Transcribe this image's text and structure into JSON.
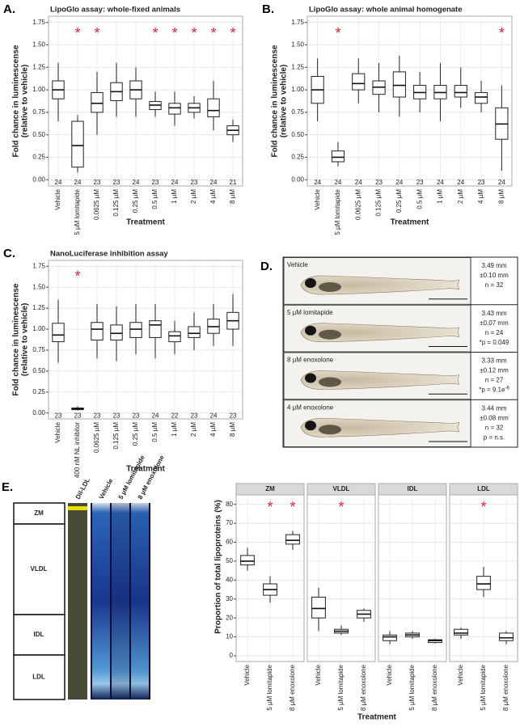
{
  "chart_data": [
    {
      "type": "box",
      "panel_label": "A.",
      "title": "LipoGlo assay: whole-fixed animals",
      "x_label": "Treatment",
      "y_label": [
        "Fold chance in luminescense",
        "(relative to vehicle)"
      ],
      "categories": [
        "Vehicle",
        "5 µM lomitapide",
        "0.0625 µM",
        "0.125 µM",
        "0.25 µM",
        "0.5 µM",
        "1 µM",
        "2 µM",
        "4 µM",
        "8 µM"
      ],
      "boxes": [
        {
          "min": 0.65,
          "q1": 0.9,
          "median": 1.0,
          "q3": 1.1,
          "max": 1.3
        },
        {
          "min": 0.08,
          "q1": 0.14,
          "median": 0.38,
          "q3": 0.65,
          "max": 0.72
        },
        {
          "min": 0.5,
          "q1": 0.75,
          "median": 0.85,
          "q3": 0.97,
          "max": 1.2
        },
        {
          "min": 0.7,
          "q1": 0.88,
          "median": 0.98,
          "q3": 1.08,
          "max": 1.3
        },
        {
          "min": 0.7,
          "q1": 0.9,
          "median": 1.0,
          "q3": 1.1,
          "max": 1.25
        },
        {
          "min": 0.7,
          "q1": 0.78,
          "median": 0.83,
          "q3": 0.87,
          "max": 0.98
        },
        {
          "min": 0.6,
          "q1": 0.73,
          "median": 0.8,
          "q3": 0.85,
          "max": 0.98
        },
        {
          "min": 0.68,
          "q1": 0.75,
          "median": 0.8,
          "q3": 0.85,
          "max": 0.93
        },
        {
          "min": 0.55,
          "q1": 0.7,
          "median": 0.77,
          "q3": 0.9,
          "max": 1.1
        },
        {
          "min": 0.42,
          "q1": 0.5,
          "median": 0.55,
          "q3": 0.6,
          "max": 0.67
        }
      ],
      "n_labels": [
        24,
        24,
        23,
        23,
        24,
        23,
        24,
        23,
        24,
        21
      ],
      "significance": [
        null,
        "*",
        "*",
        null,
        null,
        "*",
        "*",
        "*",
        "*",
        "*"
      ],
      "ylim": [
        -0.07,
        1.82
      ],
      "yticks": [
        {
          "value": 0,
          "label": "0.00"
        },
        {
          "value": 0.25,
          "label": "0.25"
        },
        {
          "value": 0.5,
          "label": "0.50"
        },
        {
          "value": 0.75,
          "label": "0.75"
        },
        {
          "value": 1,
          "label": "1.00"
        },
        {
          "value": 1.25,
          "label": "1.25"
        },
        {
          "value": 1.5,
          "label": "1.50"
        },
        {
          "value": 1.75,
          "label": "1.75"
        }
      ],
      "grid": true
    },
    {
      "type": "box",
      "panel_label": "B.",
      "title": "LipoGlo assay: whole animal homogenate",
      "x_label": "Treatment",
      "y_label": [
        "Fold chance in luminescense",
        "(relative to vehicle)"
      ],
      "categories": [
        "Vehicle",
        "5 µM lomitapide",
        "0.0625 µM",
        "0.125 µM",
        "0.25 µM",
        "0.5 µM",
        "1 µM",
        "2 µM",
        "4 µM",
        "8 µM"
      ],
      "boxes": [
        {
          "min": 0.65,
          "q1": 0.85,
          "median": 1.0,
          "q3": 1.15,
          "max": 1.35
        },
        {
          "min": 0.15,
          "q1": 0.2,
          "median": 0.25,
          "q3": 0.32,
          "max": 0.42
        },
        {
          "min": 0.85,
          "q1": 1.0,
          "median": 1.07,
          "q3": 1.18,
          "max": 1.35
        },
        {
          "min": 0.75,
          "q1": 0.95,
          "median": 1.03,
          "q3": 1.1,
          "max": 1.3
        },
        {
          "min": 0.7,
          "q1": 0.92,
          "median": 1.05,
          "q3": 1.2,
          "max": 1.38
        },
        {
          "min": 0.75,
          "q1": 0.9,
          "median": 0.97,
          "q3": 1.05,
          "max": 1.2
        },
        {
          "min": 0.65,
          "q1": 0.9,
          "median": 0.97,
          "q3": 1.05,
          "max": 1.3
        },
        {
          "min": 0.8,
          "q1": 0.92,
          "median": 0.97,
          "q3": 1.05,
          "max": 1.25
        },
        {
          "min": 0.75,
          "q1": 0.85,
          "median": 0.92,
          "q3": 0.97,
          "max": 1.1
        },
        {
          "min": 0.1,
          "q1": 0.45,
          "median": 0.62,
          "q3": 0.8,
          "max": 1.05
        }
      ],
      "n_labels": [
        24,
        24,
        24,
        23,
        24,
        23,
        24,
        24,
        23,
        24
      ],
      "significance": [
        null,
        "*",
        null,
        null,
        null,
        null,
        null,
        null,
        null,
        "*"
      ],
      "ylim": [
        -0.07,
        1.82
      ],
      "yticks": [
        {
          "value": 0,
          "label": "0.00"
        },
        {
          "value": 0.25,
          "label": "0.25"
        },
        {
          "value": 0.5,
          "label": "0.50"
        },
        {
          "value": 0.75,
          "label": "0.75"
        },
        {
          "value": 1,
          "label": "1.00"
        },
        {
          "value": 1.25,
          "label": "1.25"
        },
        {
          "value": 1.5,
          "label": "1.50"
        },
        {
          "value": 1.75,
          "label": "1.75"
        }
      ],
      "grid": true
    },
    {
      "type": "box",
      "panel_label": "C.",
      "title": "NanoLuciferase inhibition assay",
      "x_label": "Treatment",
      "y_label": [
        "Fold chance in luminescense",
        "(relative to vehicle)"
      ],
      "categories": [
        "Vehicle",
        "400 nM NL inhibitor",
        "0.0625 µM",
        "0.125 µM",
        "0.25 µM",
        "0.5 µM",
        "1 µM",
        "2 µM",
        "4 µM",
        "8 µM"
      ],
      "boxes": [
        {
          "min": 0.6,
          "q1": 0.85,
          "median": 0.93,
          "q3": 1.07,
          "max": 1.35
        },
        {
          "min": 0.03,
          "q1": 0.04,
          "median": 0.05,
          "q3": 0.06,
          "max": 0.08
        },
        {
          "min": 0.65,
          "q1": 0.87,
          "median": 1.0,
          "q3": 1.08,
          "max": 1.3
        },
        {
          "min": 0.62,
          "q1": 0.87,
          "median": 0.95,
          "q3": 1.05,
          "max": 1.27
        },
        {
          "min": 0.7,
          "q1": 0.9,
          "median": 1.0,
          "q3": 1.08,
          "max": 1.3
        },
        {
          "min": 0.65,
          "q1": 0.9,
          "median": 1.05,
          "q3": 1.1,
          "max": 1.3
        },
        {
          "min": 0.7,
          "q1": 0.85,
          "median": 0.92,
          "q3": 0.97,
          "max": 1.1
        },
        {
          "min": 0.75,
          "q1": 0.9,
          "median": 0.95,
          "q3": 1.03,
          "max": 1.2
        },
        {
          "min": 0.8,
          "q1": 0.95,
          "median": 1.03,
          "q3": 1.12,
          "max": 1.3
        },
        {
          "min": 0.8,
          "q1": 1.0,
          "median": 1.1,
          "q3": 1.2,
          "max": 1.42
        }
      ],
      "n_labels": [
        23,
        23,
        23,
        23,
        23,
        24,
        22,
        23,
        24,
        23
      ],
      "significance": [
        null,
        "*",
        null,
        null,
        null,
        null,
        null,
        null,
        null,
        null
      ],
      "ylim": [
        -0.07,
        1.82
      ],
      "yticks": [
        {
          "value": 0,
          "label": "0.00"
        },
        {
          "value": 0.25,
          "label": "0.25"
        },
        {
          "value": 0.5,
          "label": "0.50"
        },
        {
          "value": 0.75,
          "label": "0.75"
        },
        {
          "value": 1,
          "label": "1.00"
        },
        {
          "value": 1.25,
          "label": "1.25"
        },
        {
          "value": 1.5,
          "label": "1.50"
        },
        {
          "value": 1.75,
          "label": "1.75"
        }
      ],
      "grid": true
    },
    {
      "type": "facet_box",
      "panel_label": "E.",
      "x_label": "Treatment",
      "y_label": "Proportion of total lipoproteins (%)",
      "categories": [
        "Vehicle",
        "5 µM lomitapide",
        "8 µM enoxolone"
      ],
      "facets": [
        {
          "name": "ZM",
          "significance": [
            null,
            "*",
            "*"
          ],
          "boxes": [
            {
              "min": 45,
              "q1": 48,
              "median": 50,
              "q3": 53,
              "max": 57
            },
            {
              "min": 28,
              "q1": 32,
              "median": 35,
              "q3": 38,
              "max": 42
            },
            {
              "min": 56,
              "q1": 59,
              "median": 61,
              "q3": 64,
              "max": 66
            }
          ]
        },
        {
          "name": "VLDL",
          "significance": [
            null,
            "*",
            null
          ],
          "boxes": [
            {
              "min": 13,
              "q1": 20,
              "median": 25,
              "q3": 31,
              "max": 36
            },
            {
              "min": 11,
              "q1": 12,
              "median": 13,
              "q3": 14,
              "max": 16
            },
            {
              "min": 18,
              "q1": 20,
              "median": 22,
              "q3": 24,
              "max": 25
            }
          ]
        },
        {
          "name": "IDL",
          "significance": [
            null,
            null,
            null
          ],
          "boxes": [
            {
              "min": 6,
              "q1": 8,
              "median": 10,
              "q3": 11,
              "max": 13
            },
            {
              "min": 9,
              "q1": 10,
              "median": 11,
              "q3": 12,
              "max": 13
            },
            {
              "min": 6.5,
              "q1": 7,
              "median": 8,
              "q3": 8.5,
              "max": 9
            }
          ]
        },
        {
          "name": "LDL",
          "significance": [
            null,
            "*",
            null
          ],
          "boxes": [
            {
              "min": 9,
              "q1": 11,
              "median": 12,
              "q3": 14,
              "max": 15
            },
            {
              "min": 31,
              "q1": 35,
              "median": 38,
              "q3": 42,
              "max": 47
            },
            {
              "min": 6,
              "q1": 8,
              "median": 9.5,
              "q3": 12,
              "max": 13
            }
          ]
        }
      ],
      "ylim": [
        -3,
        85
      ],
      "yticks": [
        0,
        10,
        20,
        30,
        40,
        50,
        60,
        70,
        80
      ],
      "grid": true
    }
  ],
  "fish_panel": {
    "panel_label": "D.",
    "rows": [
      {
        "label": "Vehicle",
        "stats": [
          "3.49 mm",
          "±0.10 mm",
          "n = 32"
        ]
      },
      {
        "label": "5 µM lomitapide",
        "stats": [
          "3.43 mm",
          "±0.07 mm",
          "n = 24",
          "*p = 0.049"
        ]
      },
      {
        "label": "8 µM enoxolone",
        "stats": [
          "3.33 mm",
          "±0.12 mm",
          "n = 27",
          {
            "text": "*p = 9.1e",
            "sup": "-6"
          }
        ]
      },
      {
        "label": "4 µM enoxolone",
        "stats": [
          "3.44 mm",
          "±0.08 mm",
          "n = 32",
          "p = n.s."
        ]
      }
    ]
  },
  "gel_panel": {
    "lanes": [
      "Dil-LDL",
      "Vehicle",
      "5 µM lomitapide",
      "8 µM enoxolone"
    ],
    "fractions": [
      "ZM",
      "VLDL",
      "IDL",
      "LDL"
    ]
  }
}
